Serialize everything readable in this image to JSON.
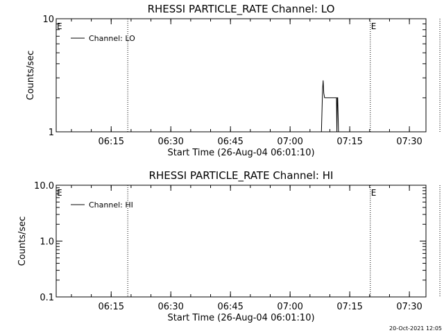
{
  "chart_data": [
    {
      "type": "line",
      "title": "RHESSI PARTICLE_RATE Channel: LO",
      "xlabel": "Start Time (26-Aug-04 06:01:10)",
      "ylabel": "Counts/sec",
      "yscale": "log",
      "ylim": [
        1,
        10
      ],
      "y_tick_labels": [
        "1",
        "10"
      ],
      "y_tick_values": [
        1,
        10
      ],
      "xlim_minutes": [
        0,
        93
      ],
      "x_tick_labels": [
        "06:15",
        "06:30",
        "06:45",
        "07:00",
        "07:15",
        "07:30"
      ],
      "x_tick_minutes": [
        13.83,
        28.83,
        43.83,
        58.83,
        73.83,
        88.83
      ],
      "legend": {
        "position": "top-left",
        "entries": [
          "Channel: LO"
        ]
      },
      "series": [
        {
          "name": "Channel: LO",
          "x_minutes": [
            66.7,
            67.0,
            67.15,
            67.3,
            67.5,
            68.0,
            70.5,
            70.6,
            70.7,
            70.8,
            71.0,
            71.2,
            71.4
          ],
          "values": [
            1.0,
            2.4,
            2.85,
            2.2,
            2.0,
            2.0,
            2.0,
            1.0,
            2.0,
            2.0,
            1.0,
            1.0,
            1.0
          ]
        }
      ],
      "markers": [
        {
          "label": "E",
          "minute": 0.0,
          "line": false
        },
        {
          "label": "",
          "minute": 18.0,
          "line": true
        },
        {
          "label": "E",
          "minute": 79.0,
          "line": true
        },
        {
          "label": "",
          "minute": 96.5,
          "line": true
        }
      ]
    },
    {
      "type": "line",
      "title": "RHESSI PARTICLE_RATE Channel: HI",
      "xlabel": "Start Time (26-Aug-04 06:01:10)",
      "ylabel": "Counts/sec",
      "yscale": "log",
      "ylim": [
        0.1,
        10
      ],
      "y_tick_labels": [
        "0.1",
        "1.0",
        "10.0"
      ],
      "y_tick_values": [
        0.1,
        1,
        10
      ],
      "xlim_minutes": [
        0,
        93
      ],
      "x_tick_labels": [
        "06:15",
        "06:30",
        "06:45",
        "07:00",
        "07:15",
        "07:30"
      ],
      "x_tick_minutes": [
        13.83,
        28.83,
        43.83,
        58.83,
        73.83,
        88.83
      ],
      "legend": {
        "position": "top-left",
        "entries": [
          "Channel: HI"
        ]
      },
      "series": [
        {
          "name": "Channel: HI",
          "x_minutes": [],
          "values": []
        }
      ],
      "markers": [
        {
          "label": "E",
          "minute": 0.0,
          "line": false
        },
        {
          "label": "",
          "minute": 18.0,
          "line": true
        },
        {
          "label": "E",
          "minute": 79.0,
          "line": true
        },
        {
          "label": "",
          "minute": 96.5,
          "line": true
        }
      ]
    }
  ],
  "footer_timestamp": "20-Oct-2021 12:05"
}
